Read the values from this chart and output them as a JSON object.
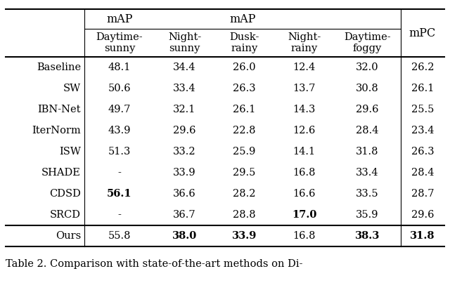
{
  "title_map": "mAP",
  "title_mpc": "mPC",
  "col_headers": [
    "Daytime-\nsunny",
    "Night-\nsunny",
    "Dusk-\nrainy",
    "Night-\nrainy",
    "Daytime-\nfoggy"
  ],
  "rows": [
    {
      "method": "Baseline",
      "values": [
        "48.1",
        "34.4",
        "26.0",
        "12.4",
        "32.0"
      ],
      "mpc": "26.2",
      "bold": []
    },
    {
      "method": "SW",
      "values": [
        "50.6",
        "33.4",
        "26.3",
        "13.7",
        "30.8"
      ],
      "mpc": "26.1",
      "bold": []
    },
    {
      "method": "IBN-Net",
      "values": [
        "49.7",
        "32.1",
        "26.1",
        "14.3",
        "29.6"
      ],
      "mpc": "25.5",
      "bold": []
    },
    {
      "method": "IterNorm",
      "values": [
        "43.9",
        "29.6",
        "22.8",
        "12.6",
        "28.4"
      ],
      "mpc": "23.4",
      "bold": []
    },
    {
      "method": "ISW",
      "values": [
        "51.3",
        "33.2",
        "25.9",
        "14.1",
        "31.8"
      ],
      "mpc": "26.3",
      "bold": []
    },
    {
      "method": "SHADE",
      "values": [
        "-",
        "33.9",
        "29.5",
        "16.8",
        "33.4"
      ],
      "mpc": "28.4",
      "bold": []
    },
    {
      "method": "CDSD",
      "values": [
        "56.1",
        "36.6",
        "28.2",
        "16.6",
        "33.5"
      ],
      "mpc": "28.7",
      "bold": [
        0
      ]
    },
    {
      "method": "SRCD",
      "values": [
        "-",
        "36.7",
        "28.8",
        "17.0",
        "35.9"
      ],
      "mpc": "29.6",
      "bold": [
        3
      ]
    }
  ],
  "ours_row": {
    "method": "Ours",
    "values": [
      "55.8",
      "38.0",
      "33.9",
      "16.8",
      "38.3"
    ],
    "mpc": "31.8",
    "bold": [
      1,
      2,
      4
    ],
    "mpc_bold": true
  },
  "caption": "Table 2. Comparison with state-of-the-art methods on Di-",
  "bg_color": "#ffffff",
  "font_size": 10.5,
  "header_font_size": 10.5,
  "caption_font_size": 10.5
}
